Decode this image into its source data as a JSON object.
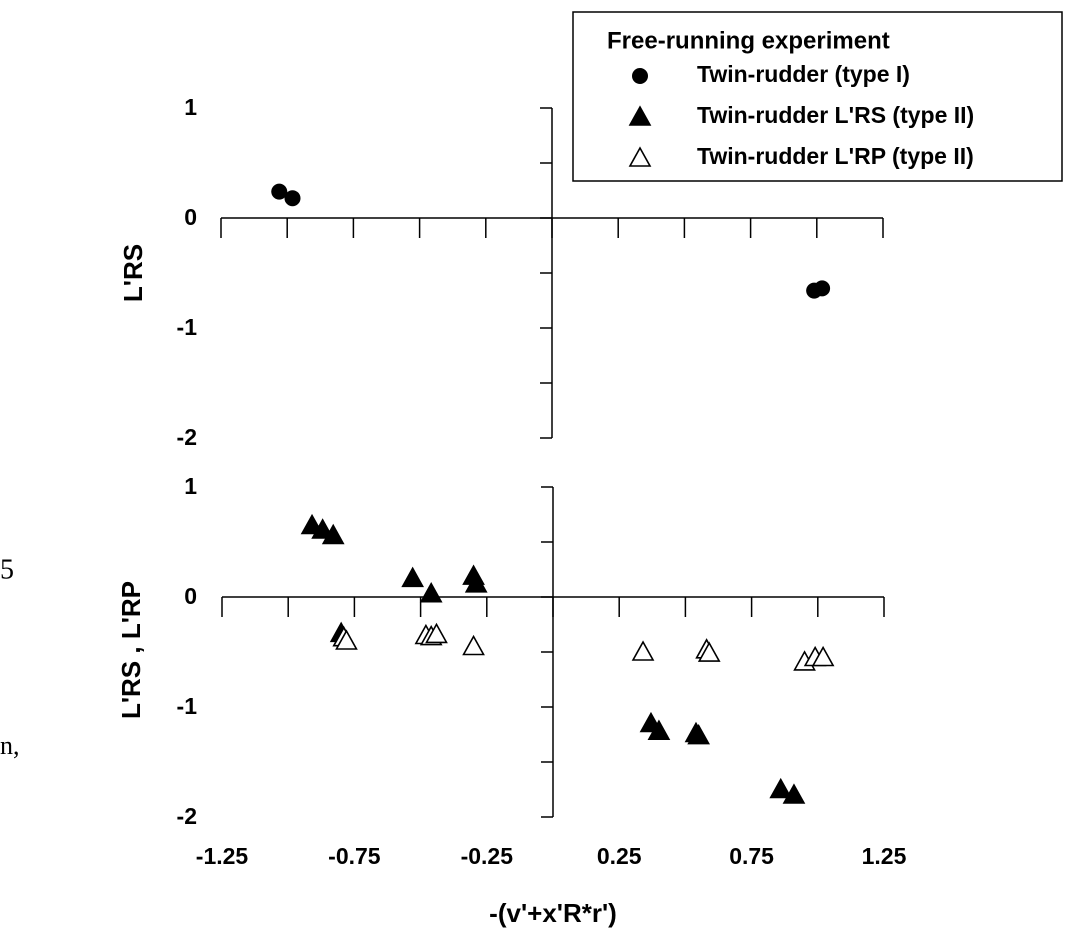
{
  "fragments": [
    "5",
    "n,"
  ],
  "chart_data": [
    {
      "type": "scatter",
      "ylabel": "L'RS",
      "legend_title": "Free-running experiment",
      "xlim": [
        -1.25,
        1.25
      ],
      "x_tick_marks": [
        -1.25,
        -1,
        -0.75,
        -0.5,
        -0.25,
        0,
        0.25,
        0.5,
        0.75,
        1,
        1.25
      ],
      "ylim": [
        -2,
        1
      ],
      "yticks": [
        1,
        0,
        -1,
        -2
      ],
      "y_minor_ticks": [
        0.5,
        -0.5,
        -1.5
      ],
      "series": [
        {
          "name": "Twin-rudder (type I)",
          "marker": "circle",
          "color": "#000000",
          "x": [
            -1.03,
            -0.98,
            0.99,
            1.02
          ],
          "y": [
            0.24,
            0.18,
            -0.66,
            -0.64
          ]
        }
      ]
    },
    {
      "type": "scatter",
      "ylabel": "L'RS , L'RP",
      "xlabel": "-(v'+x'R*r')",
      "xlim": [
        -1.25,
        1.25
      ],
      "xticks": [
        -1.25,
        -0.75,
        -0.25,
        0.25,
        0.75,
        1.25
      ],
      "x_minor_ticks": [
        -1,
        -0.5,
        0,
        0.5,
        1
      ],
      "ylim": [
        -2,
        1
      ],
      "yticks": [
        1,
        0,
        -1,
        -2
      ],
      "y_minor_ticks": [
        0.5,
        -0.5,
        -1.5
      ],
      "series": [
        {
          "name": "Twin-rudder L'RS (type II)",
          "marker": "triangle",
          "color": "#000000",
          "x": [
            -0.91,
            -0.87,
            -0.83,
            -0.53,
            -0.46,
            -0.3,
            -0.29,
            -0.8,
            -0.79,
            0.37,
            0.4,
            0.54,
            0.55,
            0.86,
            0.91
          ],
          "y": [
            0.65,
            0.61,
            0.56,
            0.17,
            0.03,
            0.19,
            0.12,
            -0.33,
            -0.37,
            -1.15,
            -1.22,
            -1.24,
            -1.26,
            -1.75,
            -1.8
          ]
        },
        {
          "name": "Twin-rudder L'RP (type II)",
          "marker": "triangle-open",
          "color": "#000000",
          "x": [
            -0.79,
            -0.78,
            -0.48,
            -0.46,
            -0.44,
            -0.3,
            0.34,
            0.58,
            0.59,
            0.95,
            0.99,
            1.02
          ],
          "y": [
            -0.37,
            -0.4,
            -0.35,
            -0.36,
            -0.34,
            -0.45,
            -0.5,
            -0.48,
            -0.51,
            -0.59,
            -0.55,
            -0.55
          ]
        }
      ]
    }
  ]
}
